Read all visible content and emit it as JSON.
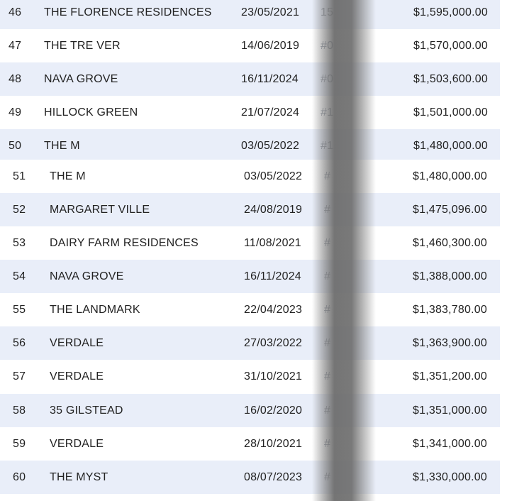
{
  "rows": [
    {
      "no": "46",
      "project": "THE FLORENCE RESIDENCES",
      "date": "23/05/2021",
      "unit": "15",
      "price": "$1,595,000.00"
    },
    {
      "no": "47",
      "project": "THE TRE VER",
      "date": "14/06/2019",
      "unit": "#0",
      "price": "$1,570,000.00"
    },
    {
      "no": "48",
      "project": "NAVA GROVE",
      "date": "16/11/2024",
      "unit": "#0",
      "price": "$1,503,600.00"
    },
    {
      "no": "49",
      "project": "HILLOCK GREEN",
      "date": "21/07/2024",
      "unit": "#1",
      "price": "$1,501,000.00"
    },
    {
      "no": "50",
      "project": "THE M",
      "date": "03/05/2022",
      "unit": "#1",
      "price": "$1,480,000.00"
    },
    {
      "no": "51",
      "project": "THE M",
      "date": "03/05/2022",
      "unit": "#",
      "price": "$1,480,000.00"
    },
    {
      "no": "52",
      "project": "MARGARET VILLE",
      "date": "24/08/2019",
      "unit": "#",
      "price": "$1,475,096.00"
    },
    {
      "no": "53",
      "project": "DAIRY FARM RESIDENCES",
      "date": "11/08/2021",
      "unit": "#",
      "price": "$1,460,300.00"
    },
    {
      "no": "54",
      "project": "NAVA GROVE",
      "date": "16/11/2024",
      "unit": "#",
      "price": "$1,388,000.00"
    },
    {
      "no": "55",
      "project": "THE LANDMARK",
      "date": "22/04/2023",
      "unit": "#",
      "price": "$1,383,780.00"
    },
    {
      "no": "56",
      "project": "VERDALE",
      "date": "27/03/2022",
      "unit": "#",
      "price": "$1,363,900.00"
    },
    {
      "no": "57",
      "project": "VERDALE",
      "date": "31/10/2021",
      "unit": "#",
      "price": "$1,351,200.00"
    },
    {
      "no": "58",
      "project": "35 GILSTEAD",
      "date": "16/02/2020",
      "unit": "#",
      "price": "$1,351,000.00"
    },
    {
      "no": "59",
      "project": "VERDALE",
      "date": "28/10/2021",
      "unit": "#",
      "price": "$1,341,000.00"
    },
    {
      "no": "60",
      "project": "THE MYST",
      "date": "08/07/2023",
      "unit": "#",
      "price": "$1,330,000.00"
    }
  ],
  "colors": {
    "row_shade": "#e9eef9",
    "row_plain": "#ffffff",
    "text": "#222222"
  }
}
